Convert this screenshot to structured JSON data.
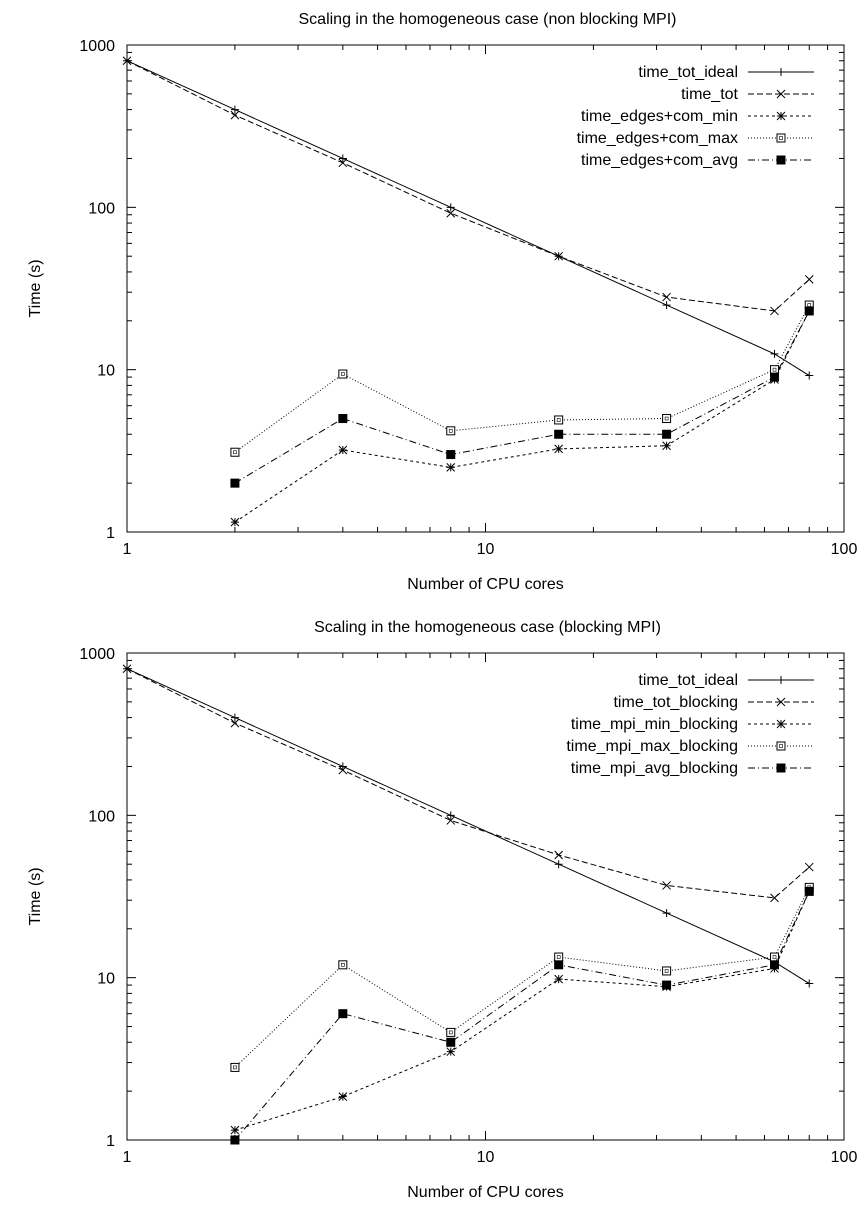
{
  "chart_data": [
    {
      "type": "line",
      "title": "Scaling in the homogeneous case (non blocking MPI)",
      "xlabel": "Number of CPU cores",
      "ylabel": "Time (s)",
      "xscale": "log",
      "yscale": "log",
      "xlim": [
        1,
        100
      ],
      "ylim": [
        1,
        1000
      ],
      "xticks": [
        1,
        10,
        100
      ],
      "yticks": [
        1,
        10,
        100,
        1000
      ],
      "xtick_labels": [
        "1",
        "10",
        "100"
      ],
      "ytick_labels": [
        "1",
        "10",
        "100",
        "1000"
      ],
      "grid": false,
      "legend_position": "top-right",
      "series": [
        {
          "name": "time_tot_ideal",
          "marker": "plus",
          "dash": "solid",
          "x": [
            1,
            2,
            4,
            8,
            16,
            32,
            64,
            80
          ],
          "y": [
            800,
            400,
            200,
            100,
            50,
            25,
            12.5,
            9.2
          ]
        },
        {
          "name": "time_tot",
          "marker": "cross",
          "dash": "dashed",
          "x": [
            1,
            2,
            4,
            8,
            16,
            32,
            64,
            80
          ],
          "y": [
            800,
            370,
            188,
            92,
            50,
            28,
            23,
            36
          ]
        },
        {
          "name": "time_edges+com_min",
          "marker": "star",
          "dash": "short-dashed",
          "x": [
            2,
            4,
            8,
            16,
            32,
            64,
            80
          ],
          "y": [
            1.15,
            3.2,
            2.5,
            3.25,
            3.4,
            8.7,
            23
          ]
        },
        {
          "name": "time_edges+com_max",
          "marker": "open-square",
          "dash": "dotted",
          "x": [
            2,
            4,
            8,
            16,
            32,
            64,
            80
          ],
          "y": [
            3.1,
            9.4,
            4.2,
            4.9,
            5.0,
            10,
            25
          ]
        },
        {
          "name": "time_edges+com_avg",
          "marker": "filled-square",
          "dash": "dash-dot",
          "x": [
            2,
            4,
            8,
            16,
            32,
            64,
            80
          ],
          "y": [
            2.0,
            5.0,
            3.0,
            4.0,
            4.0,
            9.0,
            23
          ]
        }
      ]
    },
    {
      "type": "line",
      "title": "Scaling in the homogeneous case (blocking MPI)",
      "xlabel": "Number of CPU cores",
      "ylabel": "Time (s)",
      "xscale": "log",
      "yscale": "log",
      "xlim": [
        1,
        100
      ],
      "ylim": [
        1,
        1000
      ],
      "xticks": [
        1,
        10,
        100
      ],
      "yticks": [
        1,
        10,
        100,
        1000
      ],
      "xtick_labels": [
        "1",
        "10",
        "100"
      ],
      "ytick_labels": [
        "1",
        "10",
        "100",
        "1000"
      ],
      "grid": false,
      "legend_position": "top-right",
      "series": [
        {
          "name": "time_tot_ideal",
          "marker": "plus",
          "dash": "solid",
          "x": [
            1,
            2,
            4,
            8,
            16,
            32,
            64,
            80
          ],
          "y": [
            800,
            400,
            200,
            100,
            50,
            25,
            12.5,
            9.2
          ]
        },
        {
          "name": "time_tot_blocking",
          "marker": "cross",
          "dash": "dashed",
          "x": [
            1,
            2,
            4,
            8,
            16,
            32,
            64,
            80
          ],
          "y": [
            800,
            370,
            190,
            93,
            57,
            37,
            31,
            48
          ]
        },
        {
          "name": "time_mpi_min_blocking",
          "marker": "star",
          "dash": "short-dashed",
          "x": [
            2,
            4,
            8,
            16,
            32,
            64,
            80
          ],
          "y": [
            1.15,
            1.85,
            3.5,
            9.8,
            8.8,
            11.4,
            34
          ]
        },
        {
          "name": "time_mpi_max_blocking",
          "marker": "open-square",
          "dash": "dotted",
          "x": [
            2,
            4,
            8,
            16,
            32,
            64,
            80
          ],
          "y": [
            2.8,
            12,
            4.6,
            13.4,
            11,
            13.4,
            36
          ]
        },
        {
          "name": "time_mpi_avg_blocking",
          "marker": "filled-square",
          "dash": "dash-dot",
          "x": [
            2,
            4,
            8,
            16,
            32,
            64,
            80
          ],
          "y": [
            1.0,
            6.0,
            4.0,
            12.0,
            9.0,
            12.0,
            34
          ]
        }
      ]
    }
  ]
}
